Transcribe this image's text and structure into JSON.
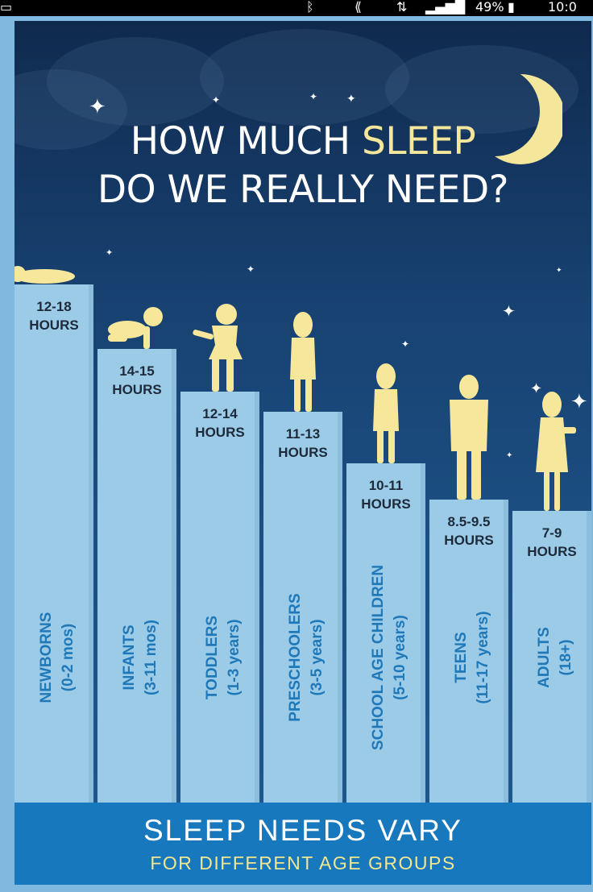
{
  "status_bar": {
    "percent": "49%",
    "time": "10:0"
  },
  "title": {
    "part1": "HOW MUCH ",
    "highlight": "SLEEP",
    "line2": "DO WE REALLY NEED?"
  },
  "footer": {
    "main": "SLEEP NEEDS VARY",
    "sub": "FOR DIFFERENT AGE GROUPS"
  },
  "colors": {
    "background_top": "#102a4e",
    "background_bottom": "#1f5a90",
    "bar": "#9ccbe8",
    "accent_yellow": "#f4e69a",
    "footer": "#1878bd",
    "label_blue": "#1f78b8",
    "hours_text": "#1d2a3a"
  },
  "chart_data": {
    "type": "bar",
    "title": "HOW MUCH SLEEP DO WE REALLY NEED?",
    "categories": [
      "NEWBORNS (0-2 mos)",
      "INFANTS (3-11 mos)",
      "TODDLERS (1-3 years)",
      "PRESCHOOLERS (3-5 years)",
      "SCHOOL AGE CHILDREN (5-10 years)",
      "TEENS (11-17 years)",
      "ADULTS (18+)"
    ],
    "groups": [
      {
        "name": "NEWBORNS",
        "age": "(0-2 mos)",
        "hours_label": "12-18",
        "unit": "HOURS",
        "min": 12,
        "max": 18,
        "figure": "baby-lying"
      },
      {
        "name": "INFANTS",
        "age": "(3-11 mos)",
        "hours_label": "14-15",
        "unit": "HOURS",
        "min": 14,
        "max": 15,
        "figure": "baby-crawling"
      },
      {
        "name": "TODDLERS",
        "age": "(1-3 years)",
        "hours_label": "12-14",
        "unit": "HOURS",
        "min": 12,
        "max": 14,
        "figure": "toddler-walking"
      },
      {
        "name": "PRESCHOOLERS",
        "age": "(3-5 years)",
        "hours_label": "11-13",
        "unit": "HOURS",
        "min": 11,
        "max": 13,
        "figure": "child-standing"
      },
      {
        "name": "SCHOOL AGE CHILDREN",
        "age": "(5-10 years)",
        "hours_label": "10-11",
        "unit": "HOURS",
        "min": 10,
        "max": 11,
        "figure": "child-standing"
      },
      {
        "name": "TEENS",
        "age": "(11-17 years)",
        "hours_label": "8.5-9.5",
        "unit": "HOURS",
        "min": 8.5,
        "max": 9.5,
        "figure": "teen-standing"
      },
      {
        "name": "ADULTS",
        "age": "(18+)",
        "hours_label": "7-9",
        "unit": "HOURS",
        "min": 7,
        "max": 9,
        "figure": "adult-standing"
      }
    ],
    "bar_tops": [
      327,
      407,
      460,
      485,
      549,
      594,
      608
    ]
  }
}
